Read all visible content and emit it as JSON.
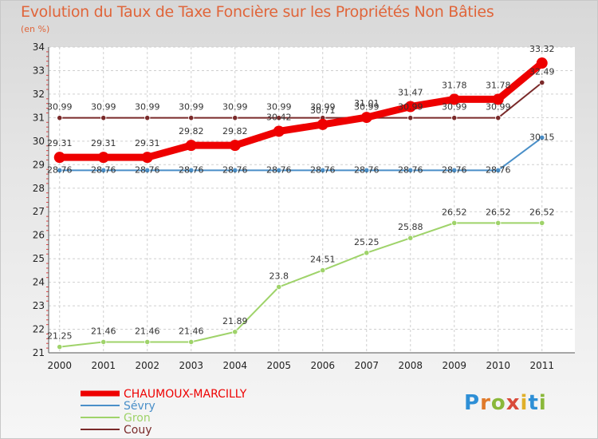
{
  "chart_data": {
    "type": "line",
    "title": "Evolution du Taux de Taxe Foncière sur les Propriétés Non Bâties",
    "subtitle": "(en %)",
    "xlabel": "",
    "ylabel": "",
    "ylim": [
      21,
      34
    ],
    "yticks": [
      "21",
      "22",
      "23",
      "24",
      "25",
      "26",
      "27",
      "28",
      "29",
      "30",
      "31",
      "32",
      "33",
      "34"
    ],
    "categories": [
      "2000",
      "2001",
      "2002",
      "2003",
      "2004",
      "2005",
      "2006",
      "2007",
      "2008",
      "2009",
      "2010",
      "2011"
    ],
    "grid": true,
    "legend_position": "bottom-left",
    "series": [
      {
        "name": "CHAUMOUX-MARCILLY",
        "color": "#ee0000",
        "values": [
          29.31,
          29.31,
          29.31,
          29.82,
          29.82,
          30.42,
          30.71,
          31.01,
          31.47,
          31.78,
          31.78,
          33.32
        ],
        "labels": [
          "29.31",
          "29.31",
          "29.31",
          "29.82",
          "29.82",
          "30.42",
          "30.71",
          "31.01",
          "31.47",
          "31.78",
          "31.78",
          "33.32"
        ]
      },
      {
        "name": "Sévry",
        "color": "#4a8fc8",
        "values": [
          28.76,
          28.76,
          28.76,
          28.76,
          28.76,
          28.76,
          28.76,
          28.76,
          28.76,
          28.76,
          28.76,
          30.15
        ],
        "labels": [
          "28.76",
          "28.76",
          "28.76",
          "28.76",
          "28.76",
          "28.76",
          "28.76",
          "28.76",
          "28.76",
          "28.76",
          "28.76",
          "30.15"
        ]
      },
      {
        "name": "Gron",
        "color": "#9fd36a",
        "values": [
          21.25,
          21.46,
          21.46,
          21.46,
          21.89,
          23.8,
          24.51,
          25.25,
          25.88,
          26.52,
          26.52,
          26.52
        ],
        "labels": [
          "21.25",
          "21.46",
          "21.46",
          "21.46",
          "21.89",
          "23.8",
          "24.51",
          "25.25",
          "25.88",
          "26.52",
          "26.52",
          "26.52"
        ]
      },
      {
        "name": "Couy",
        "color": "#7a2a2a",
        "values": [
          30.99,
          30.99,
          30.99,
          30.99,
          30.99,
          30.99,
          30.99,
          30.99,
          30.99,
          30.99,
          30.99,
          32.49
        ],
        "labels": [
          "30.99",
          "30.99",
          "30.99",
          "30.99",
          "30.99",
          "30.99",
          "30.99",
          "30.99",
          "30.99",
          "30.99",
          "30.99",
          "32.49"
        ]
      }
    ]
  },
  "logo": {
    "letters": [
      "P",
      "r",
      "o",
      "x",
      "i",
      "t",
      "i"
    ],
    "colors": [
      "#2e8fd6",
      "#e07a2a",
      "#8ab83a",
      "#d94a3a",
      "#e0b02a",
      "#2e8fd6",
      "#8ab83a"
    ]
  }
}
